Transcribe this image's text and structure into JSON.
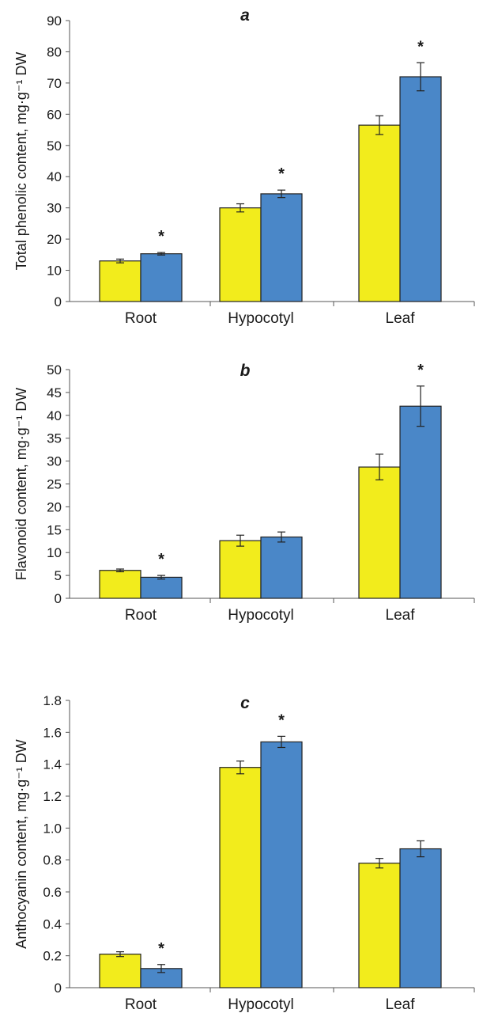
{
  "chart_data": [
    {
      "type": "bar",
      "panel": "a",
      "categories": [
        "Root",
        "Hypocotyl",
        "Leaf"
      ],
      "ylabel": "Total phenolic content, mg·g⁻¹ DW",
      "ylim": [
        0,
        90
      ],
      "yticks": [
        0,
        10,
        20,
        30,
        40,
        50,
        60,
        70,
        80,
        90
      ],
      "tick_format": "int",
      "series": [
        {
          "color": "#f2ec1c",
          "values": [
            13,
            30,
            56.5
          ],
          "errors": [
            0.6,
            1.3,
            3
          ]
        },
        {
          "color": "#4a87c8",
          "values": [
            15.3,
            34.5,
            72
          ],
          "errors": [
            0.4,
            1.2,
            4.5
          ]
        }
      ],
      "significance": [
        "*",
        "*",
        "*"
      ]
    },
    {
      "type": "bar",
      "panel": "b",
      "categories": [
        "Root",
        "Hypocotyl",
        "Leaf"
      ],
      "ylabel": "Flavonoid content, mg·g⁻¹ DW",
      "ylim": [
        0,
        50
      ],
      "yticks": [
        0,
        5,
        10,
        15,
        20,
        25,
        30,
        35,
        40,
        45,
        50
      ],
      "tick_format": "int",
      "series": [
        {
          "color": "#f2ec1c",
          "values": [
            6.1,
            12.6,
            28.7
          ],
          "errors": [
            0.3,
            1.2,
            2.8
          ]
        },
        {
          "color": "#4a87c8",
          "values": [
            4.6,
            13.4,
            42
          ],
          "errors": [
            0.4,
            1.1,
            4.4
          ]
        }
      ],
      "significance": [
        "*",
        "",
        "*"
      ]
    },
    {
      "type": "bar",
      "panel": "c",
      "categories": [
        "Root",
        "Hypocotyl",
        "Leaf"
      ],
      "ylabel": "Anthocyanin content, mg·g⁻¹ DW",
      "ylim": [
        0,
        1.8
      ],
      "yticks": [
        0,
        0.2,
        0.4,
        0.6,
        0.8,
        1.0,
        1.2,
        1.4,
        1.6,
        1.8
      ],
      "tick_format": "one_decimal_except_zero",
      "series": [
        {
          "color": "#f2ec1c",
          "values": [
            0.21,
            1.38,
            0.78
          ],
          "errors": [
            0.015,
            0.04,
            0.03
          ]
        },
        {
          "color": "#4a87c8",
          "values": [
            0.12,
            1.54,
            0.87
          ],
          "errors": [
            0.025,
            0.035,
            0.05
          ]
        }
      ],
      "significance": [
        "*",
        "*",
        ""
      ]
    }
  ]
}
